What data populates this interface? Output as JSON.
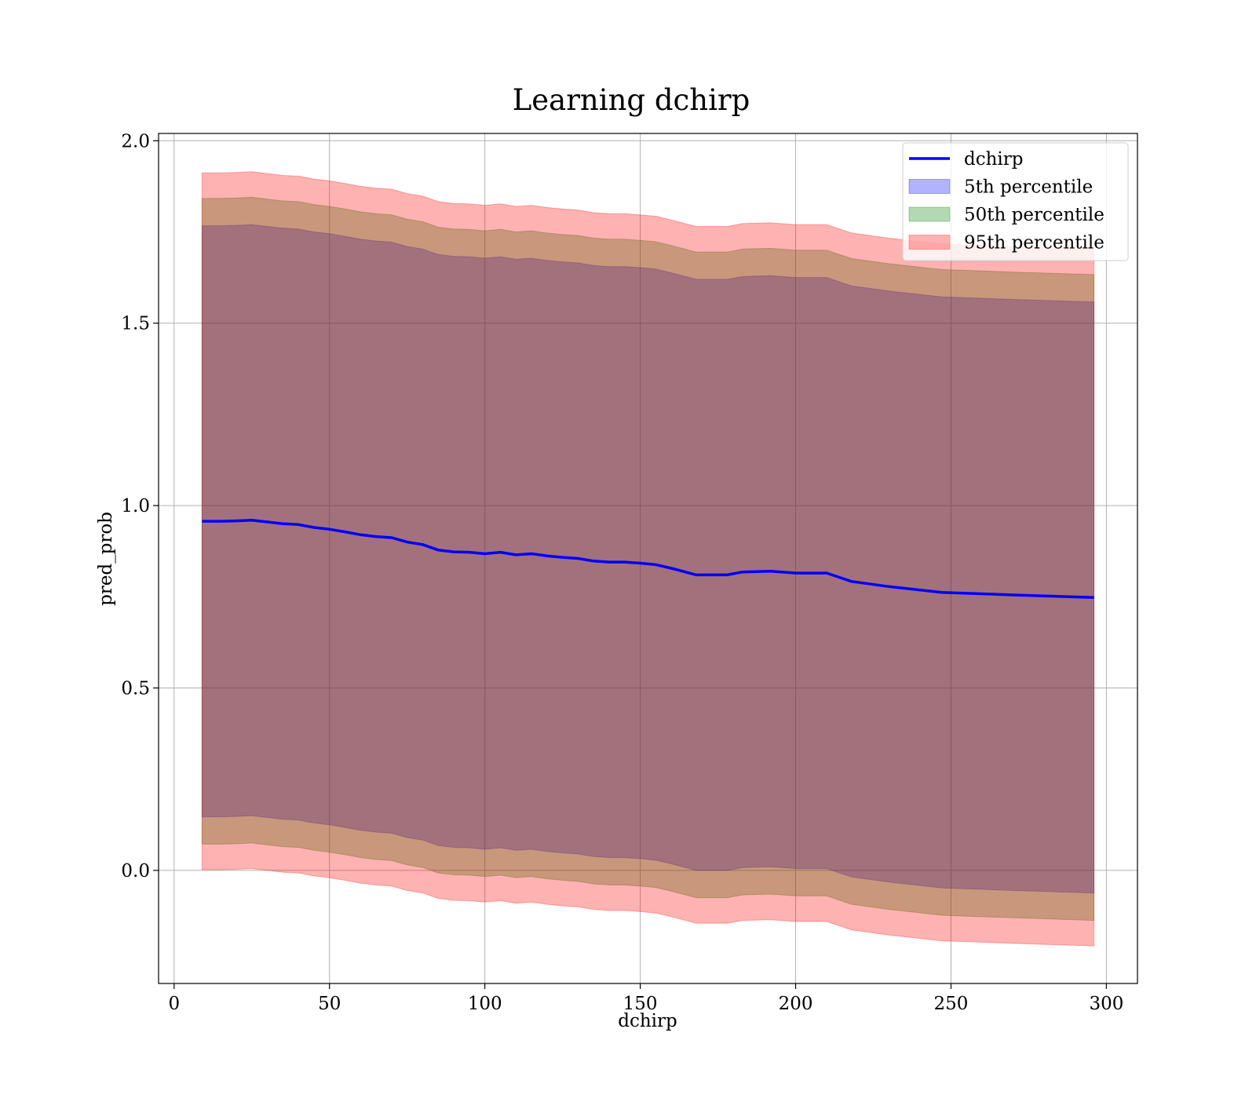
{
  "chart_data": {
    "type": "area",
    "title": "Learning dchirp",
    "xlabel": "dchirp",
    "ylabel": "pred_prob",
    "xlim": [
      -5,
      310
    ],
    "ylim": [
      -0.31,
      2.02
    ],
    "grid": true,
    "legend_position": "top-right",
    "x_ticks": [
      0,
      50,
      100,
      150,
      200,
      250,
      300
    ],
    "x_tick_labels": [
      "0",
      "50",
      "100",
      "150",
      "200",
      "250",
      "300"
    ],
    "y_ticks": [
      0.0,
      0.5,
      1.0,
      1.5,
      2.0
    ],
    "y_tick_labels": [
      "0.0",
      "0.5",
      "1.0",
      "1.5",
      "2.0"
    ],
    "x": [
      9,
      15,
      20,
      25,
      30,
      35,
      40,
      45,
      50,
      55,
      60,
      65,
      70,
      75,
      80,
      85,
      90,
      95,
      100,
      105,
      110,
      115,
      120,
      125,
      130,
      135,
      140,
      145,
      150,
      155,
      160,
      168,
      178,
      183,
      192,
      200,
      210,
      218,
      230,
      247,
      270,
      296
    ],
    "line": {
      "name": "dchirp",
      "color": "#0000ff",
      "values": [
        0.957,
        0.957,
        0.958,
        0.96,
        0.955,
        0.95,
        0.948,
        0.94,
        0.935,
        0.928,
        0.92,
        0.915,
        0.912,
        0.9,
        0.893,
        0.878,
        0.873,
        0.872,
        0.868,
        0.872,
        0.865,
        0.868,
        0.862,
        0.858,
        0.855,
        0.848,
        0.845,
        0.845,
        0.842,
        0.838,
        0.828,
        0.81,
        0.81,
        0.818,
        0.82,
        0.815,
        0.815,
        0.792,
        0.778,
        0.762,
        0.755,
        0.748
      ]
    },
    "bands": [
      {
        "name": "5th percentile",
        "color": "#0000ff",
        "offset": 0.81
      },
      {
        "name": "50th percentile",
        "color": "#008000",
        "offset": 0.885
      },
      {
        "name": "95th percentile",
        "color": "#ff0000",
        "offset": 0.955
      }
    ],
    "legend": [
      {
        "label": "dchirp",
        "kind": "line",
        "color": "#0000ff"
      },
      {
        "label": "5th percentile",
        "kind": "patch",
        "color": "#0000ff"
      },
      {
        "label": "50th percentile",
        "kind": "patch",
        "color": "#008000"
      },
      {
        "label": "95th percentile",
        "kind": "patch",
        "color": "#ff0000"
      }
    ]
  }
}
